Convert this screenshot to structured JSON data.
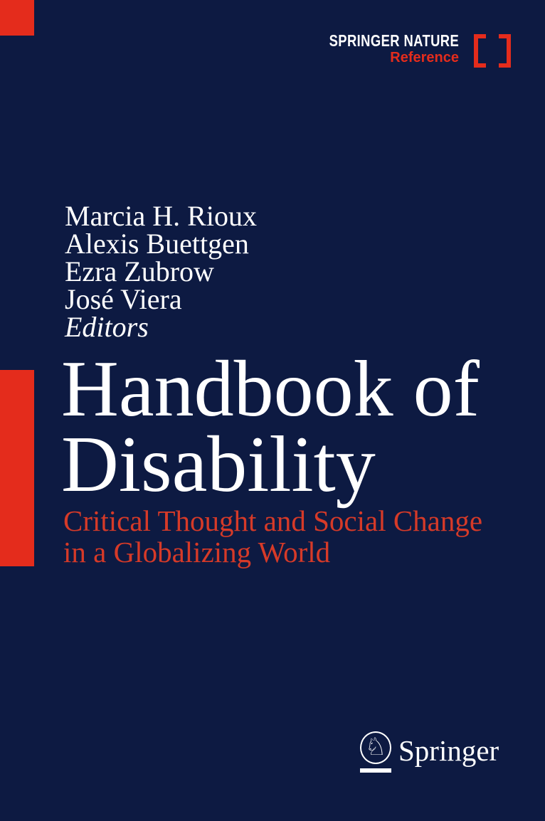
{
  "cover": {
    "background_color": "#0d1a42",
    "accent_red": "#e42c1c",
    "subtitle_red": "#d63a28",
    "text_white": "#ffffff"
  },
  "header": {
    "publisher": "SPRINGER NATURE",
    "series_label": "Reference"
  },
  "editors": {
    "names": [
      "Marcia H. Rioux",
      "Alexis Buettgen",
      "Ezra Zubrow",
      "José Viera"
    ],
    "role_label": "Editors"
  },
  "title": {
    "line1": "Handbook of",
    "line2": "Disability"
  },
  "subtitle": {
    "line1": "Critical Thought and Social Change",
    "line2": "in a Globalizing World"
  },
  "publisher_logo": {
    "name": "Springer",
    "knight_glyph": "♘"
  }
}
